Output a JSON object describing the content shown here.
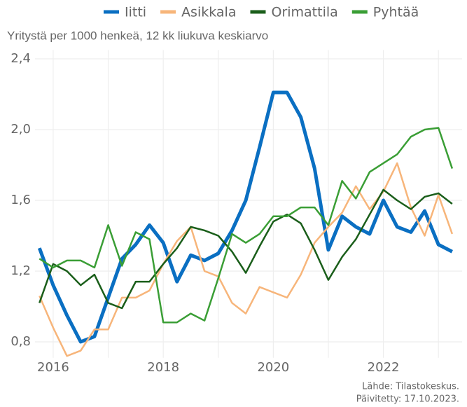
{
  "chart_data": {
    "type": "line",
    "subtitle": "Yritystä per 1000 henkeä, 12 kk liukuva keskiarvo",
    "source": "Lähde: Tilastokeskus.",
    "updated": "Päivitetty: 17.10.2023.",
    "x": [
      2015.75,
      2016,
      2016.25,
      2016.5,
      2016.75,
      2017,
      2017.25,
      2017.5,
      2017.75,
      2018,
      2018.25,
      2018.5,
      2018.75,
      2019,
      2019.25,
      2019.5,
      2019.75,
      2020,
      2020.25,
      2020.5,
      2020.75,
      2021,
      2021.25,
      2021.5,
      2021.75,
      2022,
      2022.25,
      2022.5,
      2022.75,
      2023,
      2023.25
    ],
    "series": [
      {
        "name": "Iitti",
        "color": "#0a6fc2",
        "width": 5,
        "values": [
          1.33,
          1.12,
          0.95,
          0.8,
          0.83,
          1.05,
          1.27,
          1.35,
          1.46,
          1.36,
          1.14,
          1.29,
          1.26,
          1.3,
          1.43,
          1.6,
          1.9,
          2.21,
          2.21,
          2.07,
          1.78,
          1.32,
          1.51,
          1.45,
          1.41,
          1.6,
          1.45,
          1.42,
          1.54,
          1.35,
          1.31
        ]
      },
      {
        "name": "Asikkala",
        "color": "#f7b57a",
        "width": 2.5,
        "values": [
          1.06,
          0.88,
          0.72,
          0.75,
          0.87,
          0.87,
          1.05,
          1.05,
          1.09,
          1.24,
          1.37,
          1.45,
          1.2,
          1.17,
          1.02,
          0.96,
          1.11,
          1.08,
          1.05,
          1.18,
          1.36,
          1.45,
          1.53,
          1.68,
          1.55,
          1.65,
          1.81,
          1.56,
          1.4,
          1.63,
          1.41
        ]
      },
      {
        "name": "Orimattila",
        "color": "#1a5e1a",
        "width": 2.5,
        "values": [
          1.02,
          1.24,
          1.2,
          1.12,
          1.18,
          1.02,
          0.99,
          1.14,
          1.14,
          1.24,
          1.33,
          1.45,
          1.43,
          1.4,
          1.31,
          1.19,
          1.34,
          1.48,
          1.52,
          1.47,
          1.32,
          1.15,
          1.28,
          1.38,
          1.52,
          1.66,
          1.6,
          1.55,
          1.62,
          1.64,
          1.58
        ]
      },
      {
        "name": "Pyhtää",
        "color": "#3a9e35",
        "width": 2.5,
        "values": [
          1.27,
          1.22,
          1.26,
          1.26,
          1.22,
          1.46,
          1.23,
          1.42,
          1.38,
          0.91,
          0.91,
          0.96,
          0.92,
          1.16,
          1.41,
          1.36,
          1.41,
          1.51,
          1.51,
          1.56,
          1.56,
          1.46,
          1.71,
          1.61,
          1.76,
          1.81,
          1.86,
          1.96,
          2.0,
          2.01,
          1.78
        ]
      }
    ],
    "xlim": [
      2015.67,
      2023.43
    ],
    "xticks": [
      2016,
      2018,
      2020,
      2022
    ],
    "x_minor_grid": [
      2017,
      2019,
      2021,
      2023
    ],
    "ylim": [
      0.71,
      2.45
    ],
    "yticks": [
      {
        "value": 0.8,
        "label": "0,8"
      },
      {
        "value": 1.2,
        "label": "1,2"
      },
      {
        "value": 1.6,
        "label": "1,6"
      },
      {
        "value": 2.0,
        "label": "2,0"
      },
      {
        "value": 2.4,
        "label": "2,4"
      }
    ],
    "grid": true,
    "legend": "top"
  }
}
